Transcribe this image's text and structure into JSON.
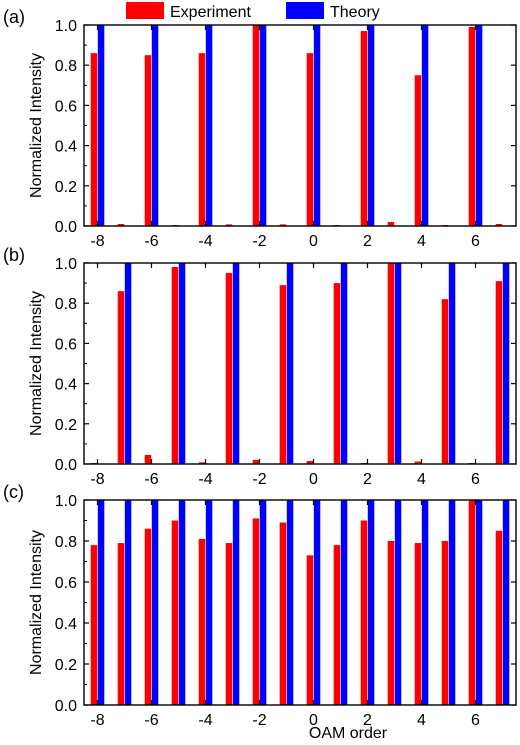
{
  "legend": {
    "position": "top-center",
    "items": [
      {
        "label": "Experiment",
        "color": "#ff0000"
      },
      {
        "label": "Theory",
        "color": "#0000ff"
      }
    ]
  },
  "common": {
    "xlabel": "OAM order",
    "ylabel": "Normalized Intensity",
    "ylim": [
      0,
      1.0
    ],
    "yticks": [
      "0.0",
      "0.2",
      "0.4",
      "0.6",
      "0.8",
      "1.0"
    ],
    "xticks": [
      "-8",
      "-6",
      "-4",
      "-2",
      "0",
      "2",
      "4",
      "6"
    ],
    "grid": false
  },
  "chart_data": [
    {
      "type": "bar",
      "panel_label": "(a)",
      "categories": [
        -8,
        -7,
        -6,
        -5,
        -4,
        -3,
        -2,
        -1,
        0,
        1,
        2,
        3,
        4,
        5,
        6,
        7
      ],
      "series": [
        {
          "name": "Experiment",
          "values": [
            0.86,
            0.01,
            0.85,
            0.005,
            0.86,
            0.008,
            1.0,
            0.008,
            0.86,
            0.005,
            0.97,
            0.02,
            0.75,
            0.005,
            0.99,
            0.01
          ]
        },
        {
          "name": "Theory",
          "values": [
            1,
            0,
            1,
            0,
            1,
            0,
            1,
            0,
            1,
            0,
            1,
            0,
            1,
            0,
            1,
            0
          ]
        }
      ],
      "ylim": [
        0,
        1.0
      ]
    },
    {
      "type": "bar",
      "panel_label": "(b)",
      "categories": [
        -8,
        -7,
        -6,
        -5,
        -4,
        -3,
        -2,
        -1,
        0,
        1,
        2,
        3,
        4,
        5,
        6,
        7
      ],
      "series": [
        {
          "name": "Experiment",
          "values": [
            0.005,
            0.86,
            0.045,
            0.98,
            0.008,
            0.95,
            0.02,
            0.89,
            0.015,
            0.9,
            0.005,
            1.0,
            0.012,
            0.82,
            0.005,
            0.91
          ]
        },
        {
          "name": "Theory",
          "values": [
            0,
            1,
            0,
            1,
            0,
            1,
            0,
            1,
            0,
            1,
            0,
            1,
            0,
            1,
            0,
            1
          ]
        }
      ],
      "ylim": [
        0,
        1.0
      ]
    },
    {
      "type": "bar",
      "panel_label": "(c)",
      "categories": [
        -8,
        -7,
        -6,
        -5,
        -4,
        -3,
        -2,
        -1,
        0,
        1,
        2,
        3,
        4,
        5,
        6,
        7
      ],
      "series": [
        {
          "name": "Experiment",
          "values": [
            0.78,
            0.79,
            0.86,
            0.9,
            0.81,
            0.79,
            0.91,
            0.89,
            0.73,
            0.78,
            0.9,
            0.8,
            0.79,
            0.8,
            1.0,
            0.85
          ]
        },
        {
          "name": "Theory",
          "values": [
            1,
            1,
            1,
            1,
            1,
            1,
            1,
            1,
            1,
            1,
            1,
            1,
            1,
            1,
            1,
            1
          ]
        }
      ],
      "ylim": [
        0,
        1.0
      ]
    }
  ]
}
